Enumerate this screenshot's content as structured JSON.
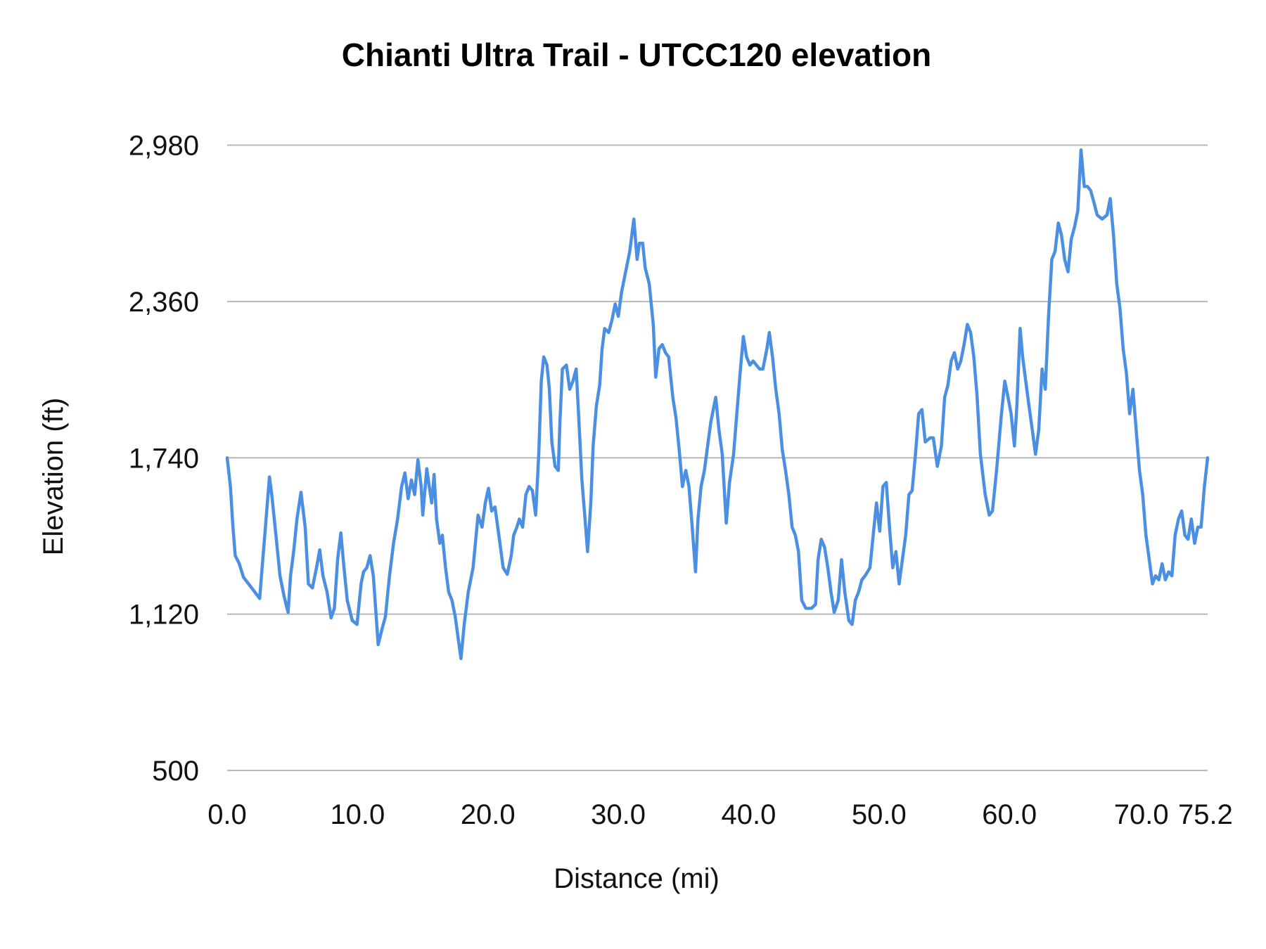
{
  "chart_data": {
    "type": "line",
    "title": "Chianti Ultra Trail - UTCC120 elevation",
    "xlabel": "Distance (mi)",
    "ylabel": "Elevation (ft)",
    "xlim": [
      0,
      75.2
    ],
    "ylim": [
      500,
      2980
    ],
    "x_ticks": [
      "0.0",
      "10.0",
      "20.0",
      "30.0",
      "40.0",
      "50.0",
      "60.0",
      "70.0",
      "75.2"
    ],
    "x_tick_values": [
      0,
      10,
      20,
      30,
      40,
      50,
      60,
      70,
      75.2
    ],
    "y_ticks": [
      "500",
      "1,120",
      "1,740",
      "2,360",
      "2,980"
    ],
    "y_tick_values": [
      500,
      1120,
      1740,
      2360,
      2980
    ],
    "grid": "horizontal",
    "legend": "none",
    "line_color": "#4a8fe2",
    "series": [
      {
        "x": [
          0,
          0.25,
          0.44,
          0.62,
          0.93,
          1.25,
          1.87,
          2.49,
          2.68,
          2.86,
          3.24,
          3.42,
          3.74,
          4.05,
          4.36,
          4.67,
          4.86,
          5.1,
          5.35,
          5.66,
          5.98,
          6.23,
          6.54,
          6.85,
          7.1,
          7.35,
          7.66,
          7.97,
          8.22,
          8.47,
          8.72,
          8.96,
          9.21,
          9.59,
          9.96,
          10.27,
          10.46,
          10.71,
          10.96,
          11.21,
          11.58,
          11.89,
          12.14,
          12.45,
          12.76,
          13.07,
          13.38,
          13.63,
          13.88,
          14.13,
          14.38,
          14.63,
          14.88,
          15.0,
          15.31,
          15.5,
          15.69,
          15.87,
          16.06,
          16.31,
          16.5,
          16.75,
          16.99,
          17.24,
          17.49,
          17.74,
          17.93,
          18.18,
          18.49,
          18.86,
          19.24,
          19.55,
          19.8,
          20.04,
          20.29,
          20.54,
          20.92,
          21.17,
          21.48,
          21.79,
          21.97,
          22.22,
          22.41,
          22.66,
          22.91,
          23.16,
          23.41,
          23.66,
          23.9,
          24.09,
          24.28,
          24.53,
          24.71,
          24.9,
          25.15,
          25.4,
          25.52,
          25.71,
          26.02,
          26.27,
          26.52,
          26.77,
          26.95,
          27.2,
          27.45,
          27.64,
          27.89,
          28.07,
          28.32,
          28.57,
          28.76,
          28.95,
          29.26,
          29.51,
          29.76,
          30.0,
          30.25,
          30.5,
          30.88,
          31.19,
          31.44,
          31.62,
          31.87,
          32.06,
          32.37,
          32.68,
          32.87,
          33.12,
          33.37,
          33.62,
          33.86,
          34.18,
          34.42,
          34.67,
          34.92,
          35.17,
          35.42,
          35.67,
          35.92,
          36.11,
          36.35,
          36.6,
          36.85,
          37.1,
          37.47,
          37.72,
          37.97,
          38.28,
          38.53,
          38.84,
          39.09,
          39.34,
          39.59,
          39.84,
          40.09,
          40.34,
          40.59,
          40.84,
          41.09,
          41.4,
          41.58,
          41.83,
          42.08,
          42.33,
          42.58,
          42.83,
          43.08,
          43.33,
          43.58,
          43.82,
          44.07,
          44.38,
          44.82,
          45.13,
          45.32,
          45.57,
          45.82,
          46.07,
          46.31,
          46.56,
          46.87,
          47.12,
          47.37,
          47.68,
          47.93,
          48.18,
          48.43,
          48.68,
          48.93,
          49.3,
          49.55,
          49.8,
          50.05,
          50.3,
          50.55,
          50.8,
          51.05,
          51.29,
          51.54,
          51.79,
          52.04,
          52.29,
          52.54,
          52.79,
          53.04,
          53.29,
          53.54,
          53.91,
          54.16,
          54.47,
          54.78,
          55.03,
          55.28,
          55.53,
          55.78,
          56.03,
          56.27,
          56.52,
          56.77,
          57.02,
          57.27,
          57.52,
          57.77,
          58.14,
          58.45,
          58.7,
          59.01,
          59.39,
          59.64,
          59.89,
          60.13,
          60.38,
          60.57,
          60.82,
          61.01,
          61.25,
          61.5,
          61.75,
          62.0,
          62.25,
          62.5,
          62.75,
          63.0,
          63.25,
          63.5,
          63.75,
          63.99,
          64.24,
          64.49,
          64.74,
          64.99,
          65.24,
          65.49,
          65.74,
          65.99,
          66.23,
          66.48,
          66.73,
          67.11,
          67.48,
          67.73,
          67.98,
          68.23,
          68.48,
          68.72,
          68.97,
          69.22,
          69.47,
          69.72,
          69.97,
          70.22,
          70.47,
          70.72,
          70.97,
          71.21,
          71.46,
          71.71,
          71.96,
          72.21,
          72.46,
          72.71,
          72.96,
          73.21,
          73.46,
          73.7,
          73.95,
          74.2,
          74.45,
          74.7,
          74.95,
          75.2
        ],
        "y": [
          1740,
          1626,
          1465,
          1352,
          1320,
          1266,
          1224,
          1182,
          1304,
          1417,
          1664,
          1594,
          1433,
          1272,
          1192,
          1127,
          1272,
          1368,
          1497,
          1603,
          1465,
          1240,
          1224,
          1304,
          1375,
          1272,
          1208,
          1105,
          1143,
          1336,
          1442,
          1304,
          1175,
          1095,
          1079,
          1240,
          1288,
          1304,
          1352,
          1272,
          999,
          1063,
          1111,
          1272,
          1401,
          1497,
          1626,
          1680,
          1578,
          1652,
          1594,
          1732,
          1626,
          1513,
          1697,
          1626,
          1561,
          1674,
          1497,
          1401,
          1433,
          1304,
          1208,
          1175,
          1111,
          1015,
          944,
          1079,
          1208,
          1304,
          1513,
          1465,
          1561,
          1619,
          1529,
          1545,
          1401,
          1304,
          1278,
          1352,
          1433,
          1465,
          1497,
          1465,
          1594,
          1626,
          1610,
          1513,
          1754,
          2044,
          2140,
          2108,
          2012,
          1803,
          1706,
          1690,
          1883,
          2092,
          2108,
          2012,
          2044,
          2092,
          1915,
          1658,
          1497,
          1368,
          1561,
          1787,
          1947,
          2028,
          2173,
          2253,
          2237,
          2285,
          2350,
          2301,
          2398,
          2462,
          2559,
          2687,
          2527,
          2591,
          2591,
          2494,
          2430,
          2269,
          2060,
          2173,
          2189,
          2157,
          2140,
          1980,
          1899,
          1771,
          1626,
          1690,
          1626,
          1465,
          1288,
          1497,
          1626,
          1690,
          1787,
          1883,
          1980,
          1851,
          1754,
          1481,
          1642,
          1754,
          1915,
          2076,
          2221,
          2140,
          2108,
          2124,
          2108,
          2092,
          2092,
          2173,
          2237,
          2140,
          2012,
          1915,
          1771,
          1690,
          1594,
          1465,
          1433,
          1368,
          1175,
          1143,
          1143,
          1159,
          1336,
          1417,
          1385,
          1304,
          1208,
          1127,
          1175,
          1336,
          1208,
          1095,
          1079,
          1175,
          1208,
          1256,
          1272,
          1304,
          1433,
          1561,
          1449,
          1626,
          1642,
          1465,
          1304,
          1368,
          1240,
          1336,
          1433,
          1594,
          1610,
          1754,
          1915,
          1931,
          1803,
          1819,
          1819,
          1706,
          1787,
          1980,
          2028,
          2124,
          2157,
          2092,
          2124,
          2189,
          2269,
          2237,
          2140,
          1980,
          1754,
          1594,
          1513,
          1529,
          1690,
          1915,
          2044,
          1980,
          1915,
          1787,
          1947,
          2253,
          2140,
          2044,
          1947,
          1851,
          1754,
          1851,
          2092,
          2012,
          2301,
          2527,
          2559,
          2671,
          2623,
          2527,
          2478,
          2607,
          2655,
          2719,
          2961,
          2816,
          2816,
          2800,
          2752,
          2703,
          2687,
          2703,
          2768,
          2623,
          2430,
          2333,
          2173,
          2076,
          1915,
          2012,
          1851,
          1690,
          1594,
          1433,
          1336,
          1240,
          1272,
          1256,
          1320,
          1256,
          1288,
          1272,
          1433,
          1497,
          1529,
          1433,
          1417,
          1497,
          1401,
          1465,
          1465,
          1626,
          1740
        ]
      }
    ]
  }
}
